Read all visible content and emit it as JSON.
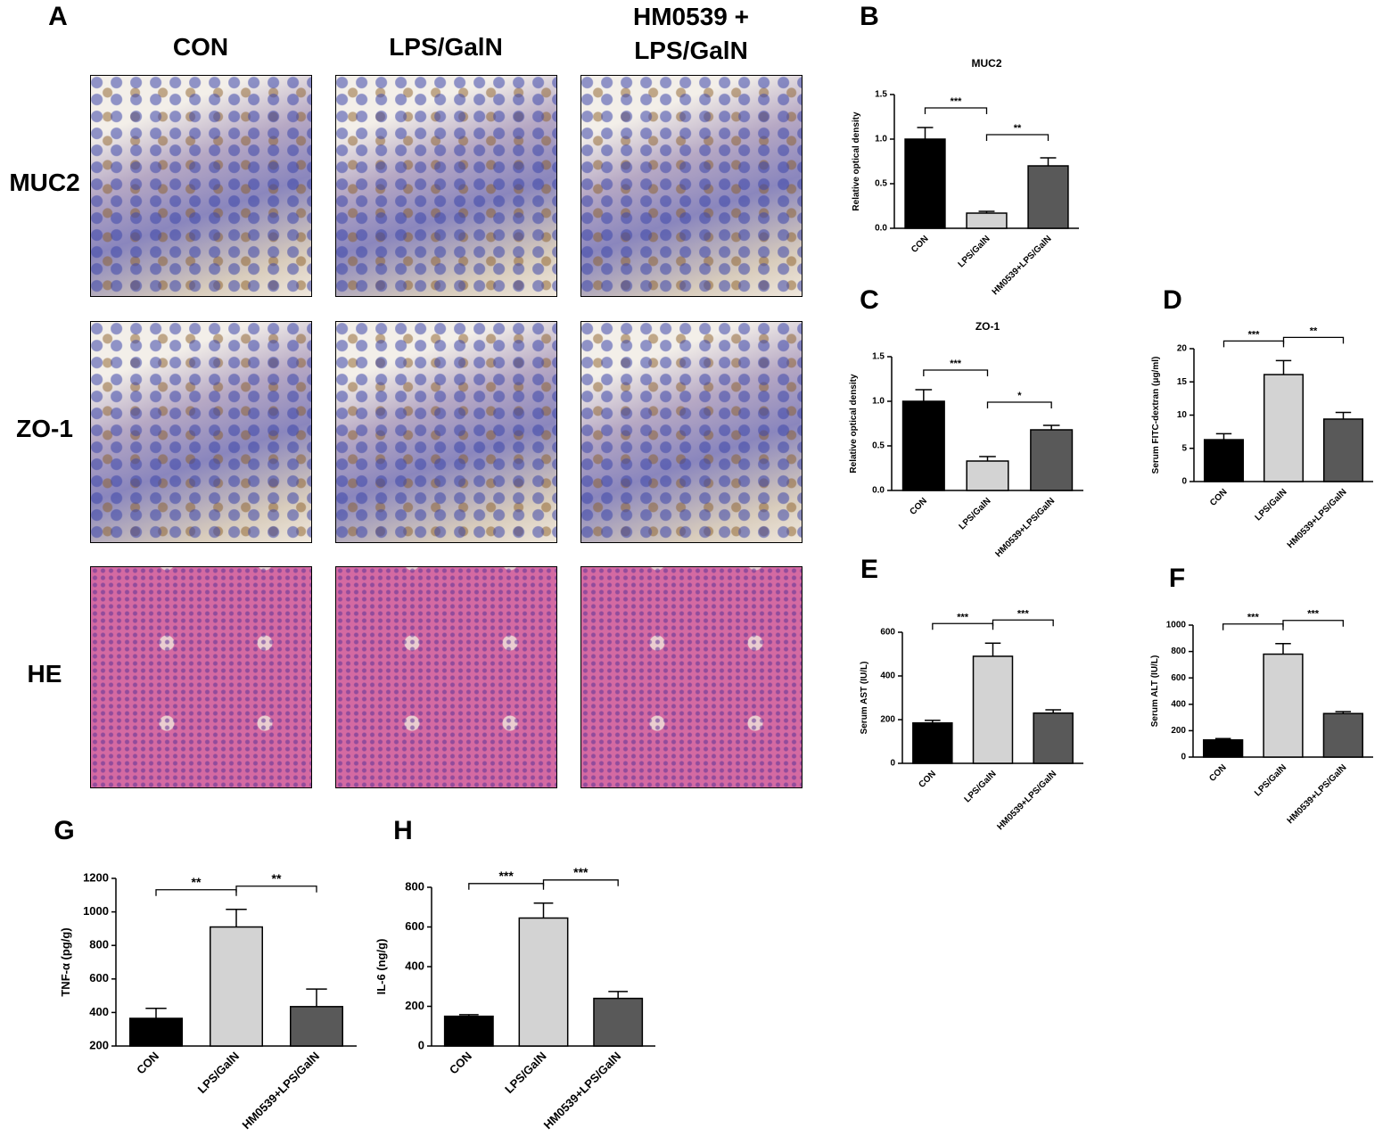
{
  "panel_a": {
    "label": "A",
    "columns": [
      "CON",
      "LPS/GalN",
      "HM0539 + LPS/GalN"
    ],
    "rows": [
      "MUC2",
      "ZO-1",
      "HE"
    ]
  },
  "chart_data": [
    {
      "type": "bar",
      "label": "B",
      "title": "MUC2",
      "y_label": "Relative optical density",
      "categories": [
        "CON",
        "LPS/GalN",
        "HM0539+LPS/GalN"
      ],
      "values": [
        1.0,
        0.17,
        0.7
      ],
      "errors": [
        0.13,
        0.02,
        0.09
      ],
      "colors": [
        "#000000",
        "#d3d3d3",
        "#595959"
      ],
      "ylim": [
        0,
        1.5
      ],
      "yticks": [
        {
          "value": 0,
          "label": "0.0"
        },
        {
          "value": 0.5,
          "label": "0.5"
        },
        {
          "value": 1,
          "label": "1.0"
        },
        {
          "value": 1.5,
          "label": "1.5"
        }
      ],
      "significance": [
        {
          "from": 0,
          "to": 1,
          "label": "***"
        },
        {
          "from": 1,
          "to": 2,
          "label": "**"
        }
      ]
    },
    {
      "type": "bar",
      "label": "C",
      "title": "ZO-1",
      "y_label": "Relative optical density",
      "categories": [
        "CON",
        "LPS/GalN",
        "HM0539+LPS/GalN"
      ],
      "values": [
        1.0,
        0.33,
        0.68
      ],
      "errors": [
        0.13,
        0.05,
        0.05
      ],
      "colors": [
        "#000000",
        "#d3d3d3",
        "#595959"
      ],
      "ylim": [
        0,
        1.5
      ],
      "yticks": [
        {
          "value": 0,
          "label": "0.0"
        },
        {
          "value": 0.5,
          "label": "0.5"
        },
        {
          "value": 1,
          "label": "1.0"
        },
        {
          "value": 1.5,
          "label": "1.5"
        }
      ],
      "significance": [
        {
          "from": 0,
          "to": 1,
          "label": "***"
        },
        {
          "from": 1,
          "to": 2,
          "label": "*"
        }
      ]
    },
    {
      "type": "bar",
      "label": "D",
      "y_label": "Serum FITC-dextran (μg/ml)",
      "categories": [
        "CON",
        "LPS/GalN",
        "HM0539+LPS/GalN"
      ],
      "values": [
        6.3,
        16.1,
        9.4
      ],
      "errors": [
        0.9,
        2.1,
        1.0
      ],
      "colors": [
        "#000000",
        "#d3d3d3",
        "#595959"
      ],
      "ylim": [
        0,
        20
      ],
      "yticks": [
        0,
        5,
        10,
        15,
        20
      ],
      "significance": [
        {
          "from": 0,
          "to": 1,
          "label": "***"
        },
        {
          "from": 1,
          "to": 2,
          "label": "**"
        }
      ]
    },
    {
      "type": "bar",
      "label": "E",
      "y_label": "Serum AST (IU/L)",
      "categories": [
        "CON",
        "LPS/GalN",
        "HM0539+LPS/GalN"
      ],
      "values": [
        185,
        490,
        230
      ],
      "errors": [
        12,
        60,
        15
      ],
      "colors": [
        "#000000",
        "#d3d3d3",
        "#595959"
      ],
      "ylim": [
        0,
        600
      ],
      "yticks": [
        0,
        200,
        400,
        600
      ],
      "significance": [
        {
          "from": 0,
          "to": 1,
          "label": "***"
        },
        {
          "from": 1,
          "to": 2,
          "label": "***"
        }
      ]
    },
    {
      "type": "bar",
      "label": "F",
      "y_label": "Serum ALT (IU/L)",
      "categories": [
        "CON",
        "LPS/GalN",
        "HM0539+LPS/GalN"
      ],
      "values": [
        130,
        780,
        330
      ],
      "errors": [
        10,
        80,
        15
      ],
      "colors": [
        "#000000",
        "#d3d3d3",
        "#595959"
      ],
      "ylim": [
        0,
        1000
      ],
      "yticks": [
        0,
        200,
        400,
        600,
        800,
        1000
      ],
      "significance": [
        {
          "from": 0,
          "to": 1,
          "label": "***"
        },
        {
          "from": 1,
          "to": 2,
          "label": "***"
        }
      ]
    },
    {
      "type": "bar",
      "label": "G",
      "y_label": "TNF-α (pg/g)",
      "categories": [
        "CON",
        "LPS/GalN",
        "HM0539+LPS/GalN"
      ],
      "values": [
        365,
        910,
        435
      ],
      "errors": [
        60,
        105,
        105
      ],
      "colors": [
        "#000000",
        "#d3d3d3",
        "#595959"
      ],
      "ylim": [
        200,
        1200
      ],
      "yticks": [
        200,
        400,
        600,
        800,
        1000,
        1200
      ],
      "significance": [
        {
          "from": 0,
          "to": 1,
          "label": "**"
        },
        {
          "from": 1,
          "to": 2,
          "label": "**"
        }
      ]
    },
    {
      "type": "bar",
      "label": "H",
      "y_label": "IL-6 (ng/g)",
      "categories": [
        "CON",
        "LPS/GalN",
        "HM0539+LPS/GalN"
      ],
      "values": [
        150,
        645,
        240
      ],
      "errors": [
        8,
        75,
        35
      ],
      "colors": [
        "#000000",
        "#d3d3d3",
        "#595959"
      ],
      "ylim": [
        0,
        800
      ],
      "yticks": [
        0,
        200,
        400,
        600,
        800
      ],
      "significance": [
        {
          "from": 0,
          "to": 1,
          "label": "***"
        },
        {
          "from": 1,
          "to": 2,
          "label": "***"
        }
      ]
    }
  ]
}
